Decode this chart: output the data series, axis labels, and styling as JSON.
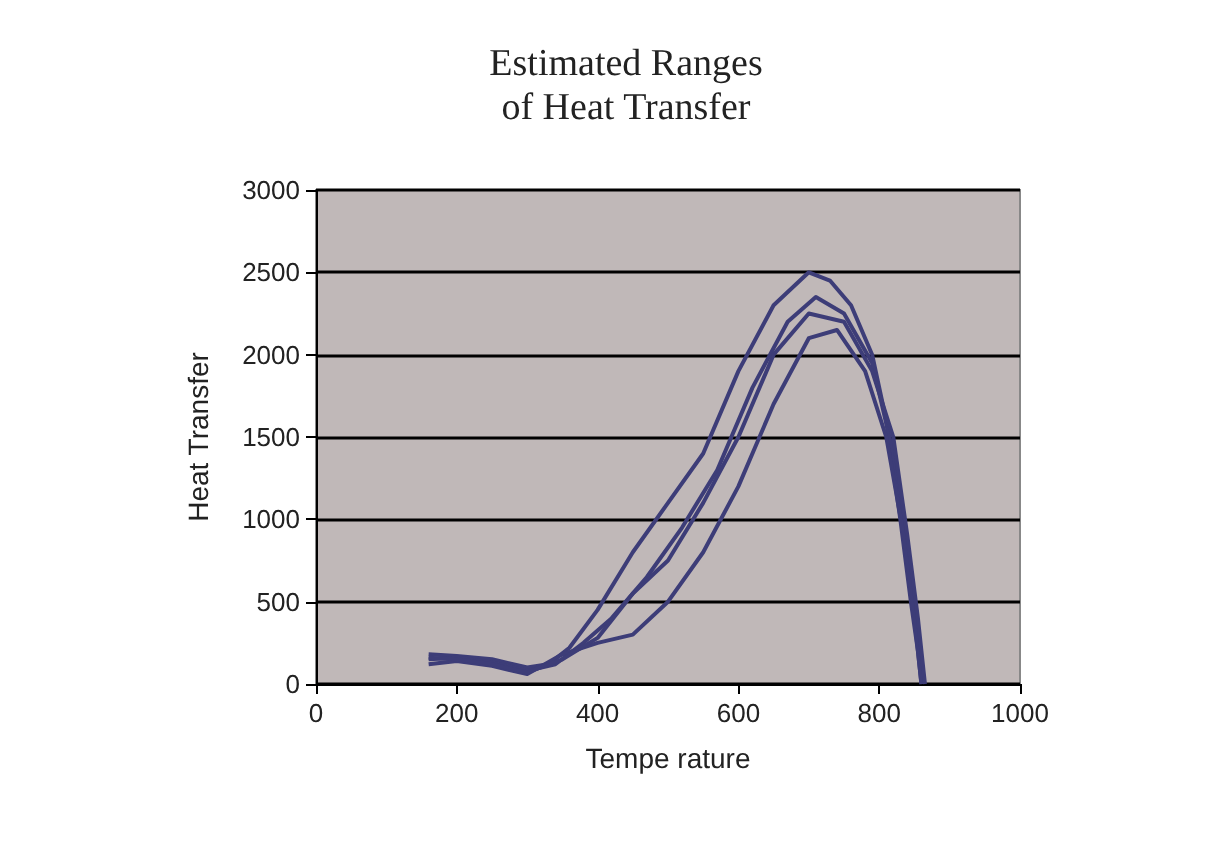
{
  "chart_data": {
    "type": "line",
    "title": "Estimated Ranges\nof Heat Transfer",
    "xlabel": "Tempe rature",
    "ylabel": "Heat Transfer",
    "xlim": [
      0,
      1000
    ],
    "xticks": [
      0,
      200,
      400,
      600,
      800,
      1000
    ],
    "ylim": [
      0,
      3000
    ],
    "yticks": [
      0,
      500,
      1000,
      1500,
      2000,
      2500,
      3000
    ],
    "grid": "y",
    "marker": "none",
    "line_style": "solid",
    "series": [
      {
        "color": "#3d3d78",
        "x": [
          160,
          200,
          250,
          300,
          330,
          360,
          400,
          450,
          500,
          550,
          600,
          650,
          700,
          730,
          760,
          790,
          810,
          830,
          845,
          855,
          860
        ],
        "values": [
          180,
          170,
          150,
          100,
          120,
          220,
          450,
          800,
          1100,
          1400,
          1900,
          2300,
          2500,
          2450,
          2300,
          2000,
          1600,
          1000,
          500,
          200,
          0
        ]
      },
      {
        "color": "#3d3d78",
        "x": [
          160,
          200,
          250,
          300,
          340,
          380,
          420,
          470,
          520,
          570,
          620,
          670,
          710,
          750,
          790,
          820,
          840,
          855,
          862
        ],
        "values": [
          150,
          160,
          130,
          80,
          120,
          250,
          400,
          650,
          950,
          1300,
          1800,
          2200,
          2350,
          2250,
          1950,
          1400,
          800,
          300,
          0
        ]
      },
      {
        "color": "#3d3d78",
        "x": [
          160,
          200,
          250,
          300,
          350,
          400,
          450,
          500,
          550,
          600,
          650,
          700,
          740,
          780,
          810,
          835,
          850,
          860
        ],
        "values": [
          120,
          140,
          110,
          60,
          180,
          250,
          300,
          500,
          800,
          1200,
          1700,
          2100,
          2150,
          1900,
          1500,
          900,
          400,
          0
        ]
      },
      {
        "color": "#3d3d78",
        "x": [
          160,
          200,
          250,
          300,
          350,
          400,
          450,
          500,
          550,
          600,
          650,
          700,
          750,
          790,
          820,
          840,
          855,
          865
        ],
        "values": [
          160,
          150,
          120,
          70,
          150,
          280,
          550,
          750,
          1100,
          1500,
          2000,
          2250,
          2200,
          1900,
          1500,
          900,
          400,
          0
        ]
      }
    ]
  }
}
